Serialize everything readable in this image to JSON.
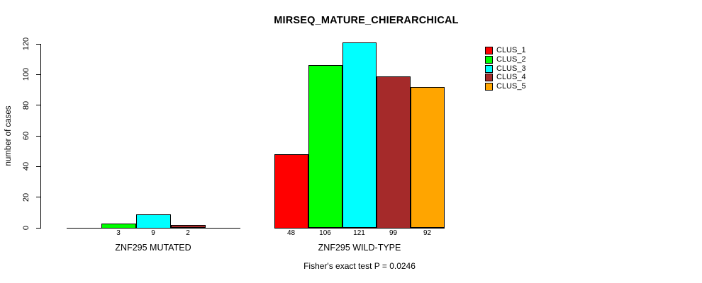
{
  "chart_data": {
    "type": "bar",
    "title": "MIRSEQ_MATURE_CHIERARCHICAL",
    "ylabel": "number of cases",
    "xlabel": "",
    "ylim": [
      0,
      120
    ],
    "yticks": [
      0,
      20,
      40,
      60,
      80,
      100,
      120
    ],
    "grid": false,
    "legend_position": "right",
    "categories": [
      "ZNF295 MUTATED",
      "ZNF295 WILD-TYPE"
    ],
    "series": [
      {
        "name": "CLUS_1",
        "color": "#FF0000",
        "values": [
          0,
          48
        ]
      },
      {
        "name": "CLUS_2",
        "color": "#00FF00",
        "values": [
          3,
          106
        ]
      },
      {
        "name": "CLUS_3",
        "color": "#00FFFF",
        "values": [
          9,
          121
        ]
      },
      {
        "name": "CLUS_4",
        "color": "#A52A2A",
        "values": [
          2,
          99
        ]
      },
      {
        "name": "CLUS_5",
        "color": "#FFA500",
        "values": [
          0,
          92
        ]
      }
    ],
    "bar_value_labels": [
      [
        "",
        "3",
        "9",
        "2",
        ""
      ],
      [
        "48",
        "106",
        "121",
        "99",
        "92"
      ]
    ],
    "footnote": "Fisher's exact test P = 0.0246"
  }
}
